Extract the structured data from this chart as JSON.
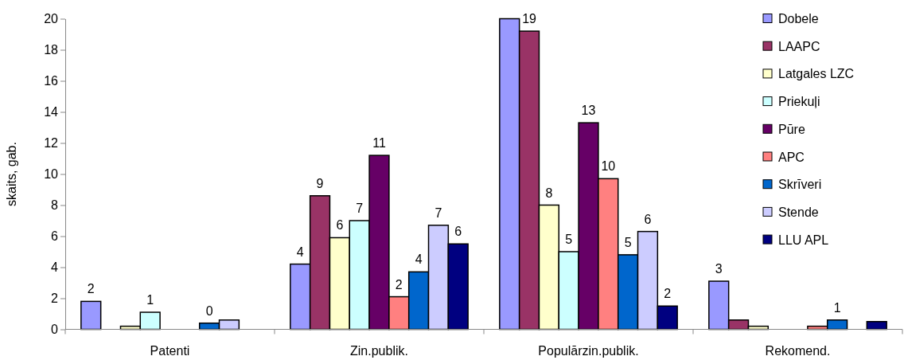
{
  "chart_data": {
    "type": "bar",
    "ylabel": "skaits, gab.",
    "categories": [
      "Patenti",
      "Zin.publik.",
      "Populārzin.publik.",
      "Rekomend."
    ],
    "series": [
      {
        "name": "Dobele",
        "color": "#9999ff",
        "values": [
          1.8,
          4.2,
          20,
          3.1
        ],
        "value_labels": [
          "2",
          "4",
          null,
          "3"
        ]
      },
      {
        "name": "LAAPC",
        "color": "#993366",
        "values": [
          0,
          8.6,
          19.2,
          0.6
        ],
        "value_labels": [
          null,
          "9",
          "19",
          null
        ]
      },
      {
        "name": "Latgales LZC",
        "color": "#ffffcc",
        "values": [
          0.2,
          5.9,
          8.0,
          0.2
        ],
        "value_labels": [
          null,
          "6",
          "8",
          null
        ]
      },
      {
        "name": "Priekuļi",
        "color": "#ccffff",
        "values": [
          1.1,
          7.0,
          5.0,
          0
        ],
        "value_labels": [
          "1",
          "7",
          "5",
          null
        ]
      },
      {
        "name": "Pūre",
        "color": "#660066",
        "values": [
          0,
          11.2,
          13.3,
          0
        ],
        "value_labels": [
          null,
          "11",
          "13",
          null
        ]
      },
      {
        "name": "APC",
        "color": "#ff8080",
        "values": [
          0,
          2.1,
          9.7,
          0.2
        ],
        "value_labels": [
          null,
          "2",
          "10",
          null
        ]
      },
      {
        "name": "Skrīveri",
        "color": "#0066cc",
        "values": [
          0.4,
          3.7,
          4.8,
          0.6
        ],
        "value_labels": [
          "0",
          "4",
          "5",
          "1"
        ]
      },
      {
        "name": "Stende",
        "color": "#ccccff",
        "values": [
          0.6,
          6.7,
          6.3,
          0
        ],
        "value_labels": [
          null,
          "7",
          "6",
          null
        ]
      },
      {
        "name": "LLU APL",
        "color": "#000080",
        "values": [
          0,
          5.5,
          1.5,
          0.5
        ],
        "value_labels": [
          null,
          "6",
          "2",
          null
        ]
      }
    ],
    "ylim": [
      0,
      20
    ],
    "yticks": [
      0,
      2,
      4,
      6,
      8,
      10,
      12,
      14,
      16,
      18,
      20
    ],
    "grid": false,
    "legend": "top right"
  }
}
